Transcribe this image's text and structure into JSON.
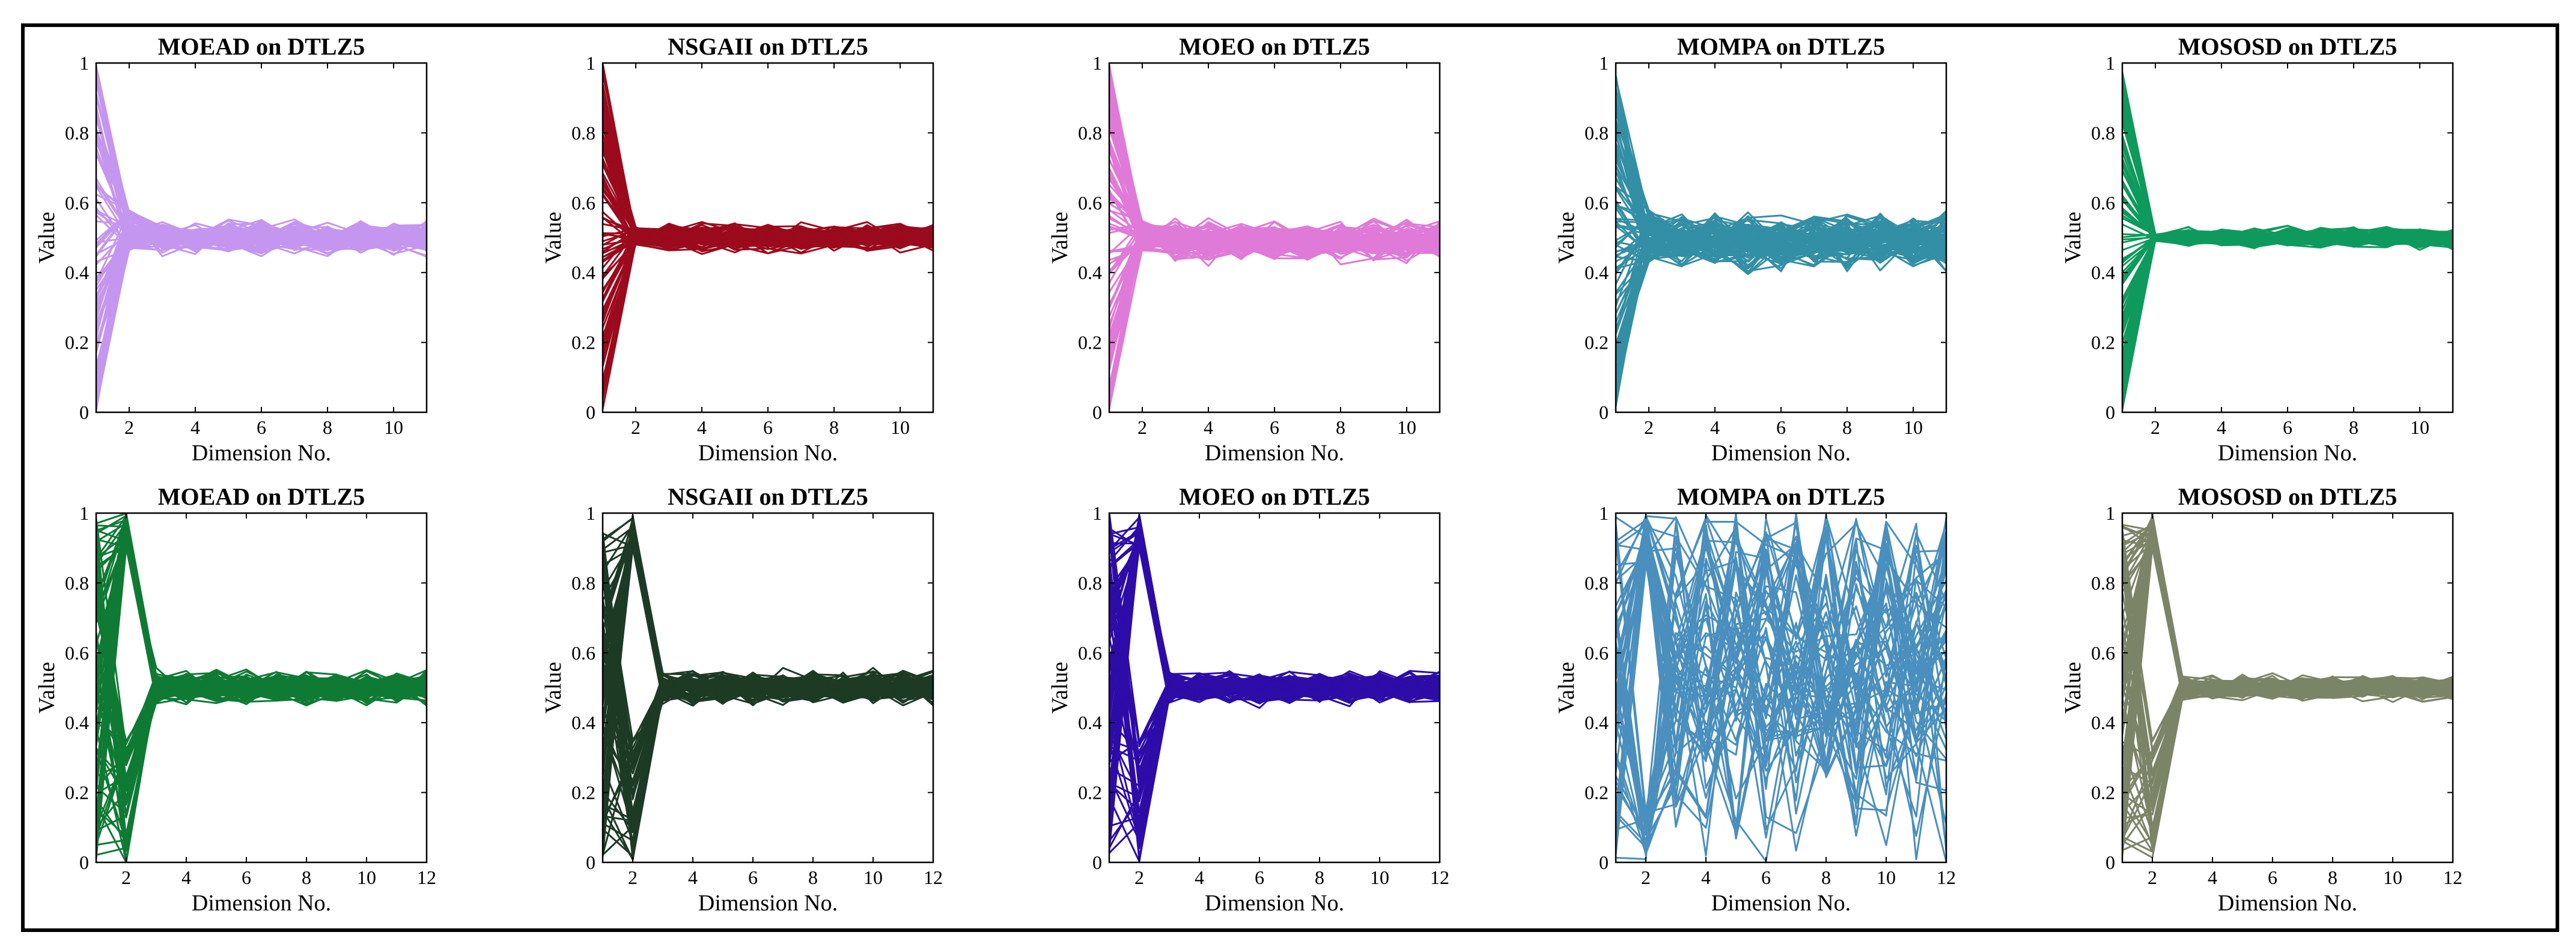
{
  "figure": {
    "border_color": "#000000",
    "background": "#ffffff"
  },
  "chart_data": [
    {
      "type": "line",
      "title": "MOEAD on DTLZ5",
      "xlabel": "Dimension No.",
      "ylabel": "Value",
      "xlim": [
        1,
        11
      ],
      "ylim": [
        0,
        1
      ],
      "xticks": [
        2,
        4,
        6,
        8,
        10
      ],
      "yticks": [
        0,
        0.2,
        0.4,
        0.6,
        0.8,
        1
      ],
      "color": "#c596ef",
      "line_count": 100,
      "dim1_range": [
        0,
        1
      ],
      "dim2_range": [
        0.46,
        0.58
      ],
      "tail_mean": 0.5,
      "tail_spread": 0.04
    },
    {
      "type": "line",
      "title": "NSGAII on DTLZ5",
      "xlabel": "Dimension No.",
      "ylabel": "Value",
      "xlim": [
        1,
        11
      ],
      "ylim": [
        0,
        1
      ],
      "xticks": [
        2,
        4,
        6,
        8,
        10
      ],
      "yticks": [
        0,
        0.2,
        0.4,
        0.6,
        0.8,
        1
      ],
      "color": "#9b0a1d",
      "line_count": 100,
      "dim1_range": [
        0,
        1
      ],
      "dim2_range": [
        0.48,
        0.53
      ],
      "tail_mean": 0.5,
      "tail_spread": 0.035
    },
    {
      "type": "line",
      "title": "MOEO on DTLZ5",
      "xlabel": "Dimension No.",
      "ylabel": "Value",
      "xlim": [
        1,
        11
      ],
      "ylim": [
        0,
        1
      ],
      "xticks": [
        2,
        4,
        6,
        8,
        10
      ],
      "yticks": [
        0,
        0.2,
        0.4,
        0.6,
        0.8,
        1
      ],
      "color": "#e07ad8",
      "line_count": 100,
      "dim1_range": [
        0,
        1
      ],
      "dim2_range": [
        0.46,
        0.55
      ],
      "tail_mean": 0.49,
      "tail_spread": 0.05
    },
    {
      "type": "line",
      "title": "MOMPA on DTLZ5",
      "xlabel": "Dimension No.",
      "ylabel": "Value",
      "xlim": [
        1,
        11
      ],
      "ylim": [
        0,
        1
      ],
      "xticks": [
        2,
        4,
        6,
        8,
        10
      ],
      "yticks": [
        0,
        0.2,
        0.4,
        0.6,
        0.8,
        1
      ],
      "color": "#338fa5",
      "line_count": 100,
      "dim1_range": [
        0,
        1
      ],
      "dim2_range": [
        0.43,
        0.58
      ],
      "tail_mean": 0.49,
      "tail_spread": 0.07
    },
    {
      "type": "line",
      "title": "MOSOSD on DTLZ5",
      "xlabel": "Dimension No.",
      "ylabel": "Value",
      "xlim": [
        1,
        11
      ],
      "ylim": [
        0,
        1
      ],
      "xticks": [
        2,
        4,
        6,
        8,
        10
      ],
      "yticks": [
        0,
        0.2,
        0.4,
        0.6,
        0.8,
        1
      ],
      "color": "#0e9a5c",
      "line_count": 100,
      "dim1_range": [
        0,
        1
      ],
      "dim2_range": [
        0.49,
        0.51
      ],
      "tail_mean": 0.5,
      "tail_spread": 0.025
    },
    {
      "type": "line",
      "title": "MOEAD on DTLZ5",
      "xlabel": "Dimension No.",
      "ylabel": "Value",
      "xlim": [
        1,
        12
      ],
      "ylim": [
        0,
        1
      ],
      "xticks": [
        2,
        4,
        6,
        8,
        10,
        12
      ],
      "yticks": [
        0,
        0.2,
        0.4,
        0.6,
        0.8,
        1
      ],
      "color": "#0f7a34",
      "line_count": 100,
      "dim1_range": [
        0,
        1
      ],
      "dim2_range": [
        0,
        1
      ],
      "tail_mean": 0.5,
      "tail_spread": 0.04
    },
    {
      "type": "line",
      "title": "NSGAII on DTLZ5",
      "xlabel": "Dimension No.",
      "ylabel": "Value",
      "xlim": [
        1,
        12
      ],
      "ylim": [
        0,
        1
      ],
      "xticks": [
        2,
        4,
        6,
        8,
        10,
        12
      ],
      "yticks": [
        0,
        0.2,
        0.4,
        0.6,
        0.8,
        1
      ],
      "color": "#1d3a24",
      "line_count": 100,
      "dim1_range": [
        0,
        1
      ],
      "dim2_range": [
        0,
        1
      ],
      "tail_mean": 0.5,
      "tail_spread": 0.04
    },
    {
      "type": "line",
      "title": "MOEO on DTLZ5",
      "xlabel": "Dimension No.",
      "ylabel": "Value",
      "xlim": [
        1,
        12
      ],
      "ylim": [
        0,
        1
      ],
      "xticks": [
        2,
        4,
        6,
        8,
        10,
        12
      ],
      "yticks": [
        0,
        0.2,
        0.4,
        0.6,
        0.8,
        1
      ],
      "color": "#2d0ca8",
      "line_count": 100,
      "dim1_range": [
        0,
        1
      ],
      "dim2_range": [
        0,
        1
      ],
      "tail_mean": 0.5,
      "tail_spread": 0.04
    },
    {
      "type": "line",
      "title": "MOMPA on DTLZ5",
      "xlabel": "Dimension No.",
      "ylabel": "Value",
      "xlim": [
        1,
        12
      ],
      "ylim": [
        0,
        1
      ],
      "xticks": [
        2,
        4,
        6,
        8,
        10,
        12
      ],
      "yticks": [
        0,
        0.2,
        0.4,
        0.6,
        0.8,
        1
      ],
      "color": "#4a8fbd",
      "line_count": 60,
      "dim1_range": [
        0,
        1
      ],
      "dim2_range": [
        0,
        1
      ],
      "tail_mean": 0.5,
      "tail_spread": 0.3
    },
    {
      "type": "line",
      "title": "MOSOSD on DTLZ5",
      "xlabel": "Dimension No.",
      "ylabel": "Value",
      "xlim": [
        1,
        12
      ],
      "ylim": [
        0,
        1
      ],
      "xticks": [
        2,
        4,
        6,
        8,
        10,
        12
      ],
      "yticks": [
        0,
        0.2,
        0.4,
        0.6,
        0.8,
        1
      ],
      "color": "#7c8468",
      "line_count": 100,
      "dim1_range": [
        0,
        1
      ],
      "dim2_range": [
        0,
        1
      ],
      "tail_mean": 0.5,
      "tail_spread": 0.03
    }
  ]
}
